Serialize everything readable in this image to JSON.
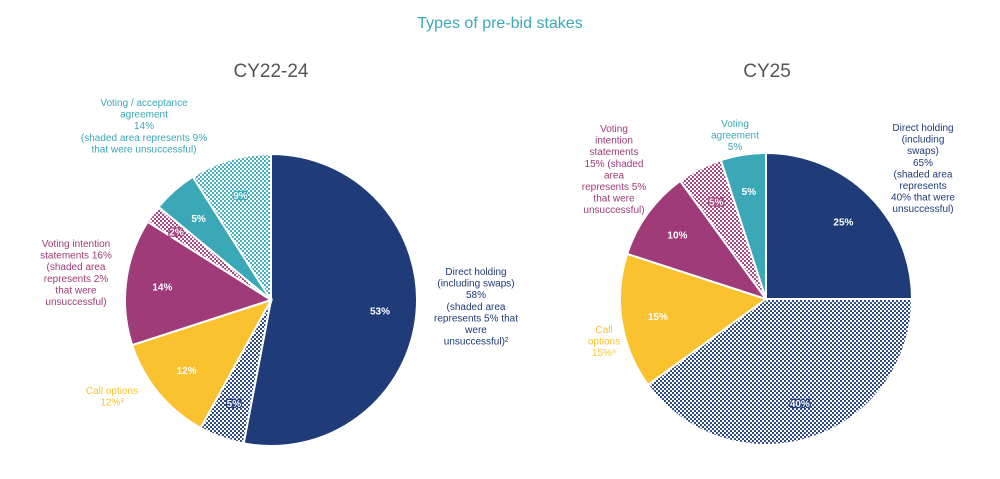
{
  "colors": {
    "navy": "#1f3c78",
    "yellow": "#f9c22e",
    "magenta": "#9e3b78",
    "teal": "#3aa8b6",
    "title": "#3aa8b6",
    "subtitle": "#555555"
  },
  "chart_data": {
    "title": "Types of pre-bid stakes",
    "charts": [
      {
        "type": "pie",
        "title": "CY22-24",
        "slices": [
          {
            "name": "Direct holding (successful)",
            "value": 53,
            "label": "53%",
            "color": "navy",
            "shaded": false
          },
          {
            "name": "Direct holding (unsuccessful)",
            "value": 5,
            "label": "5%",
            "color": "navy",
            "shaded": true
          },
          {
            "name": "Call options",
            "value": 12,
            "label": "12%",
            "color": "yellow",
            "shaded": false
          },
          {
            "name": "Voting intention statements (successful)",
            "value": 14,
            "label": "14%",
            "color": "magenta",
            "shaded": false
          },
          {
            "name": "Voting intention statements (unsuccessful)",
            "value": 2,
            "label": "2%",
            "color": "magenta",
            "shaded": true
          },
          {
            "name": "Voting / acceptance agreement (successful)",
            "value": 5,
            "label": "5%",
            "color": "teal",
            "shaded": false
          },
          {
            "name": "Voting / acceptance agreement (unsuccessful)",
            "value": 9,
            "label": "9%",
            "color": "teal",
            "shaded": true
          }
        ],
        "annotations": [
          {
            "lines": [
              "Direct holding",
              "(including swaps)",
              "58%",
              "(shaded area",
              "represents 5% that",
              "were",
              "unsuccessful)²"
            ],
            "color": "navy"
          },
          {
            "lines": [
              "Call options",
              "12%³"
            ],
            "color": "yellow"
          },
          {
            "lines": [
              "Voting intention",
              "statements 16%",
              "(shaded area",
              "represents 2%",
              "that were",
              "unsuccessful)"
            ],
            "color": "magenta"
          },
          {
            "lines": [
              "Voting / acceptance",
              "agreement",
              "14%",
              "(shaded area represents 9%",
              "that were unsuccessful)"
            ],
            "color": "teal"
          }
        ]
      },
      {
        "type": "pie",
        "title": "CY25",
        "slices": [
          {
            "name": "Direct holding (successful)",
            "value": 25,
            "label": "25%",
            "color": "navy",
            "shaded": false
          },
          {
            "name": "Direct holding (unsuccessful)",
            "value": 40,
            "label": "40%",
            "color": "navy",
            "shaded": true
          },
          {
            "name": "Call options",
            "value": 15,
            "label": "15%",
            "color": "yellow",
            "shaded": false
          },
          {
            "name": "Voting intention statements (successful)",
            "value": 10,
            "label": "10%",
            "color": "magenta",
            "shaded": false
          },
          {
            "name": "Voting intention statements (unsuccessful)",
            "value": 5,
            "label": "5%",
            "color": "magenta",
            "shaded": true
          },
          {
            "name": "Voting agreement",
            "value": 5,
            "label": "5%",
            "color": "teal",
            "shaded": false
          }
        ],
        "annotations": [
          {
            "lines": [
              "Direct holding",
              "(including",
              "swaps)",
              "65%",
              "(shaded area",
              "represents",
              "40% that were",
              "unsuccessful)"
            ],
            "color": "navy"
          },
          {
            "lines": [
              "Call",
              "options",
              "15%⁵"
            ],
            "color": "yellow"
          },
          {
            "lines": [
              "Voting",
              "intention",
              "statements",
              "15% (shaded",
              "area",
              "represents 5%",
              "that were",
              "unsuccessful)"
            ],
            "color": "magenta"
          },
          {
            "lines": [
              "Voting",
              "agreement",
              "5%"
            ],
            "color": "teal"
          }
        ]
      }
    ]
  }
}
